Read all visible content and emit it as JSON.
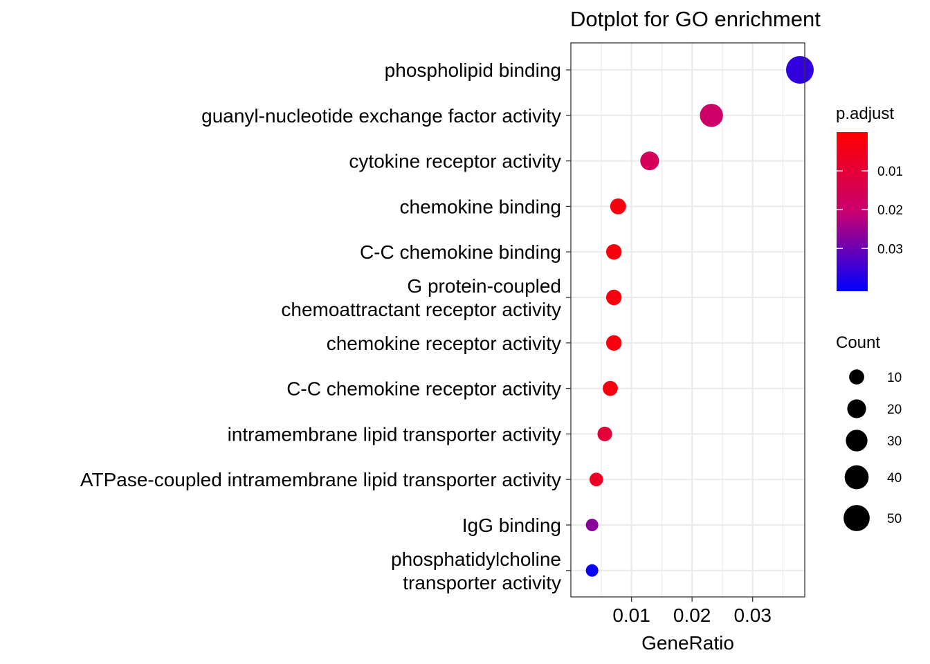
{
  "chart_data": {
    "type": "scatter",
    "title": "Dotplot for GO enrichment",
    "xlabel": "GeneRatio",
    "ylabel": "",
    "xlim": [
      0.0,
      0.0386
    ],
    "xticks": [
      0.01,
      0.02,
      0.03
    ],
    "xtick_labels": [
      "0.01",
      "0.02",
      "0.03"
    ],
    "grid": true,
    "categories": [
      "phospholipid binding",
      "guanyl-nucleotide exchange factor activity",
      "cytokine receptor activity",
      "chemokine binding",
      "C-C chemokine binding",
      "G protein-coupled\nchemoattractant receptor activity",
      "chemokine receptor activity",
      "C-C chemokine receptor activity",
      "intramembrane lipid transporter activity",
      "ATPase-coupled intramembrane lipid transporter activity",
      "IgG binding",
      "phosphatidylcholine\ntransporter activity"
    ],
    "gene_ratio": [
      0.0378,
      0.0232,
      0.013,
      0.0078,
      0.0071,
      0.0071,
      0.0071,
      0.0065,
      0.0056,
      0.0042,
      0.0035,
      0.0035
    ],
    "count": [
      58,
      36,
      20,
      12,
      11,
      11,
      11,
      10,
      9,
      7,
      5,
      5
    ],
    "p_adjust": [
      0.036,
      0.019,
      0.016,
      0.0025,
      0.0025,
      0.0025,
      0.0025,
      0.003,
      0.01,
      0.007,
      0.027,
      0.04
    ],
    "color_scale": {
      "title": "p.adjust",
      "low_color": "#FF0000",
      "high_color": "#0000FF",
      "range": [
        0.0,
        0.041
      ],
      "ticks": [
        0.01,
        0.02,
        0.03
      ],
      "tick_labels": [
        "0.01",
        "0.02",
        "0.03"
      ]
    },
    "size_legend": {
      "title": "Count",
      "values": [
        10,
        20,
        30,
        40,
        50
      ],
      "labels": [
        "10",
        "20",
        "30",
        "40",
        "50"
      ]
    },
    "legend_position": "right"
  }
}
